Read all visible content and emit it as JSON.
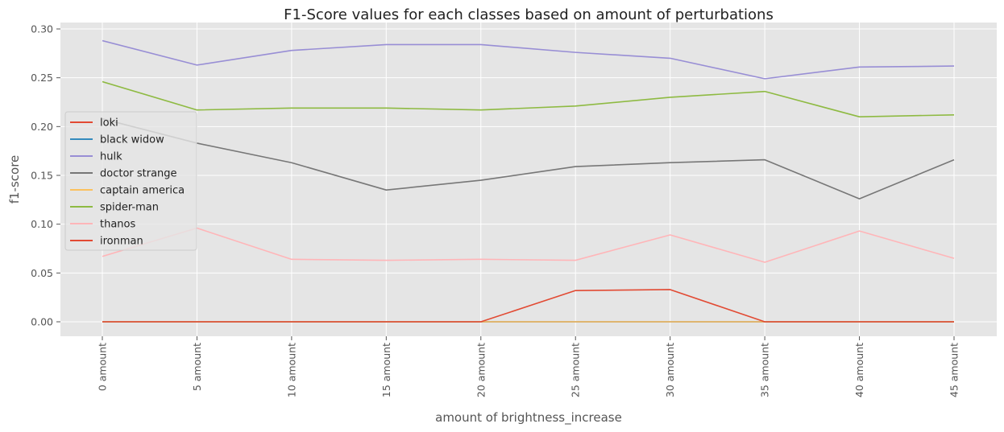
{
  "chart_data": {
    "type": "line",
    "title": "F1-Score values for each classes based on amount of perturbations",
    "xlabel": "amount of brightness_increase",
    "ylabel": "f1-score",
    "categories": [
      "0 amount",
      "5 amount",
      "10 amount",
      "15 amount",
      "20 amount",
      "25 amount",
      "30 amount",
      "35 amount",
      "40 amount",
      "45 amount"
    ],
    "ylim": [
      -0.015,
      0.305
    ],
    "yticks": [
      0.0,
      0.05,
      0.1,
      0.15,
      0.2,
      0.25,
      0.3
    ],
    "ytick_labels": [
      "0.00",
      "0.05",
      "0.10",
      "0.15",
      "0.20",
      "0.25",
      "0.30"
    ],
    "grid": true,
    "legend_position": "center-left",
    "series": [
      {
        "name": "loki",
        "color": "#E24A33",
        "values": [
          0.0,
          0.0,
          0.0,
          0.0,
          0.0,
          0.0,
          0.0,
          0.0,
          0.0,
          0.0
        ]
      },
      {
        "name": "black widow",
        "color": "#348ABD",
        "values": [
          0.0,
          0.0,
          0.0,
          0.0,
          0.0,
          0.0,
          0.0,
          0.0,
          0.0,
          0.0
        ]
      },
      {
        "name": "hulk",
        "color": "#988ED5",
        "values": [
          0.288,
          0.263,
          0.278,
          0.284,
          0.284,
          0.276,
          0.27,
          0.249,
          0.261,
          0.262
        ]
      },
      {
        "name": "doctor strange",
        "color": "#777777",
        "values": [
          0.208,
          0.183,
          0.163,
          0.135,
          0.145,
          0.159,
          0.163,
          0.166,
          0.126,
          0.166
        ]
      },
      {
        "name": "captain america",
        "color": "#FBC15E",
        "values": [
          0.0,
          0.0,
          0.0,
          0.0,
          0.0,
          0.0,
          0.0,
          0.0,
          0.0,
          0.0
        ]
      },
      {
        "name": "spider-man",
        "color": "#8EBA42",
        "values": [
          0.246,
          0.217,
          0.219,
          0.219,
          0.217,
          0.221,
          0.23,
          0.236,
          0.21,
          0.212
        ]
      },
      {
        "name": "thanos",
        "color": "#FFB5B8",
        "values": [
          0.067,
          0.096,
          0.064,
          0.063,
          0.064,
          0.063,
          0.089,
          0.061,
          0.093,
          0.065
        ]
      },
      {
        "name": "ironman",
        "color": "#E24A33",
        "values": [
          0.0,
          0.0,
          0.0,
          0.0,
          0.0,
          0.032,
          0.033,
          0.0,
          0.0,
          0.0
        ]
      }
    ]
  }
}
